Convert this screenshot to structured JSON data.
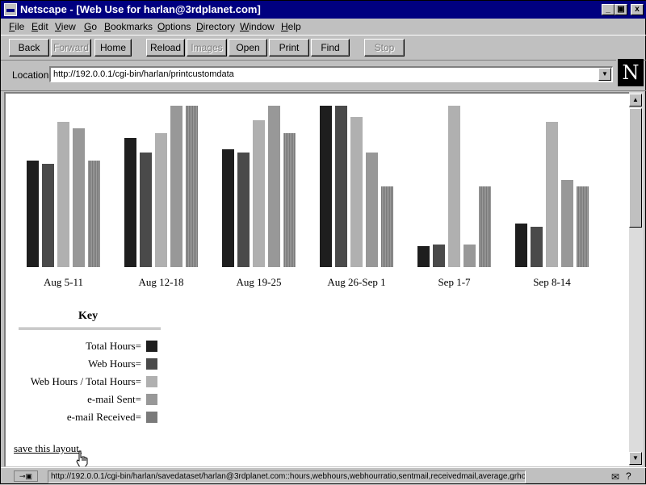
{
  "window": {
    "title": "Netscape - [Web Use for harlan@3rdplanet.com]",
    "controls": {
      "minimize": "_",
      "maximize": "▣",
      "close": "x"
    }
  },
  "menu": [
    "File",
    "Edit",
    "View",
    "Go",
    "Bookmarks",
    "Options",
    "Directory",
    "Window",
    "Help"
  ],
  "toolbar": {
    "buttons": [
      {
        "label": "Back",
        "enabled": true
      },
      {
        "label": "Forward",
        "enabled": false
      },
      {
        "label": "Home",
        "enabled": true
      },
      {
        "label": "Reload",
        "enabled": true
      },
      {
        "label": "Images",
        "enabled": false
      },
      {
        "label": "Open",
        "enabled": true
      },
      {
        "label": "Print",
        "enabled": true
      },
      {
        "label": "Find",
        "enabled": true
      },
      {
        "label": "Stop",
        "enabled": false
      }
    ]
  },
  "location": {
    "label": "Location:",
    "url": "http://192.0.0.1/cgi-bin/harlan/printcustomdata",
    "logo": "N"
  },
  "chart_data": {
    "type": "bar",
    "categories": [
      "Aug 5-11",
      "Aug 12-18",
      "Aug 19-25",
      "Aug 26-Sep 1",
      "Sep 1-7",
      "Sep 8-14"
    ],
    "ylim": [
      0,
      100
    ],
    "series": [
      {
        "name": "Total Hours",
        "color": "#1e1e1e",
        "values": [
          66,
          80,
          73,
          100,
          13,
          27
        ]
      },
      {
        "name": "Web Hours",
        "color": "#4a4a4a",
        "values": [
          64,
          71,
          71,
          100,
          14,
          25
        ]
      },
      {
        "name": "Web Hours / Total Hours",
        "color": "#b0b0b0",
        "values": [
          90,
          83,
          91,
          93,
          100,
          90
        ]
      },
      {
        "name": "e-mail Sent",
        "color": "#989898",
        "values": [
          86,
          100,
          100,
          71,
          14,
          54
        ]
      },
      {
        "name": "e-mail Received",
        "color": "#7a7a7a",
        "values": [
          66,
          100,
          83,
          50,
          50,
          50
        ]
      }
    ]
  },
  "key": {
    "title": "Key",
    "items": [
      {
        "label": "Total Hours=",
        "color": "#1e1e1e"
      },
      {
        "label": "Web Hours=",
        "color": "#4a4a4a"
      },
      {
        "label": "Web Hours / Total Hours=",
        "color": "#b0b0b0"
      },
      {
        "label": "e-mail Sent=",
        "color": "#989898"
      },
      {
        "label": "e-mail Received=",
        "color": "#7a7a7a"
      }
    ]
  },
  "save_link": "save this layout.",
  "status": {
    "text": "http://192.0.0.1/cgi-bin/harlan/savedataset/harlan@3rdplanet.com::hours,webhours,webhourratio,sentmail,receivedmail,average,grhours,grweb"
  }
}
